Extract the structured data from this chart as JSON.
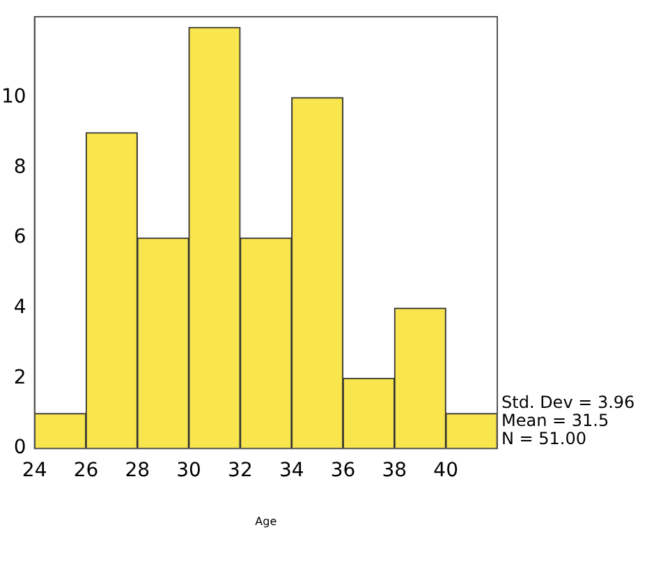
{
  "chart_data": {
    "type": "histogram",
    "xlabel": "Age",
    "bins": [
      24,
      26,
      28,
      30,
      32,
      34,
      36,
      38,
      40,
      42
    ],
    "values": [
      1,
      9,
      6,
      12,
      6,
      10,
      2,
      4,
      1
    ],
    "color": "#f9e54e",
    "xlim": [
      24,
      42
    ],
    "xticks": [
      24,
      26,
      28,
      30,
      32,
      34,
      36,
      38,
      40
    ],
    "ylim": [
      0,
      12.3
    ],
    "yticks": [
      0,
      2,
      4,
      6,
      8,
      10
    ],
    "grid": false,
    "legend": false,
    "annotations": [
      "Std. Dev = 3.96",
      "Mean = 31.5",
      "N = 51.00"
    ]
  }
}
